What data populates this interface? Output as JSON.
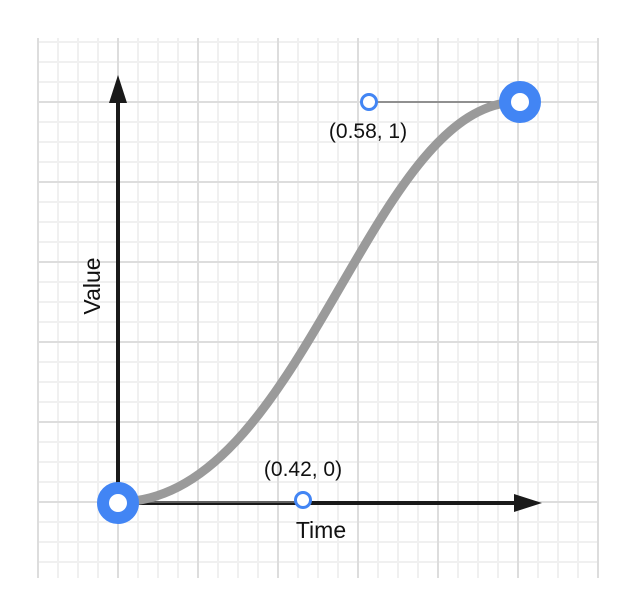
{
  "axes": {
    "x_label": "Time",
    "y_label": "Value"
  },
  "control_points": [
    {
      "label": "(0.42, 0)",
      "x": 0.42,
      "y": 0
    },
    {
      "label": "(0.58, 1)",
      "x": 0.58,
      "y": 1
    }
  ],
  "colors": {
    "accent": "#4285f4",
    "curve": "#9a9a9a",
    "axis": "#1a1a1a",
    "grid_minor": "#f0f0f0",
    "grid_major": "#dddddd"
  }
}
